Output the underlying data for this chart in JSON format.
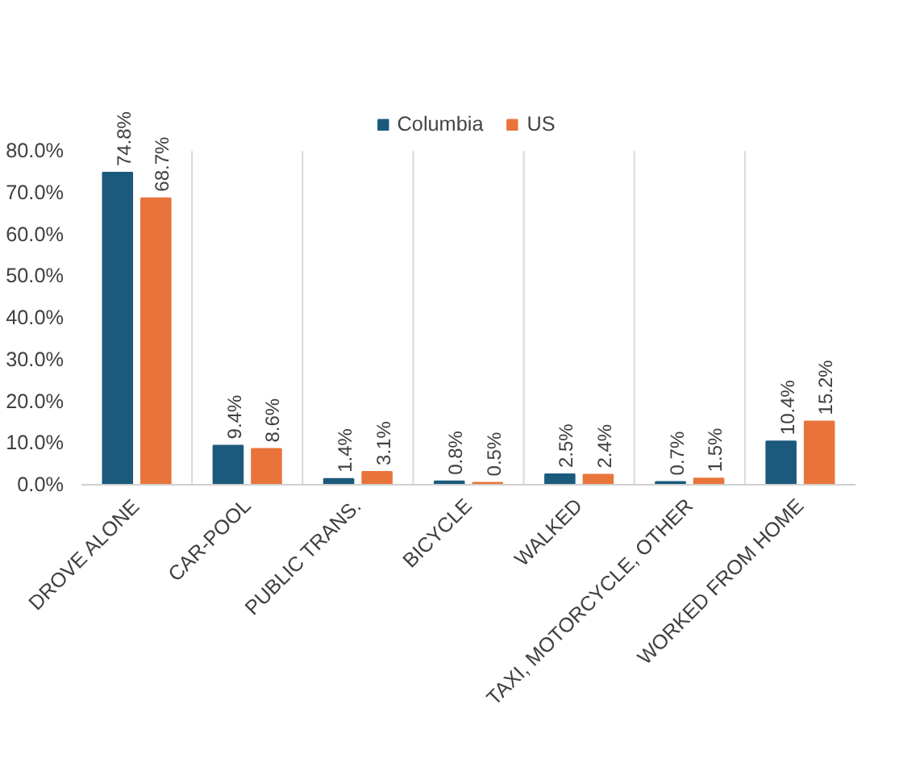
{
  "chart_data": {
    "type": "bar",
    "categories": [
      "DROVE ALONE",
      "CAR-POOL",
      "PUBLIC TRANS.",
      "BICYCLE",
      "WALKED",
      "TAXI, MOTORCYCLE, OTHER",
      "WORKED FROM HOME"
    ],
    "series": [
      {
        "name": "Columbia",
        "color": "#1b5a7c",
        "values": [
          74.8,
          9.4,
          1.4,
          0.8,
          2.5,
          0.7,
          10.4
        ],
        "value_labels": [
          "74.8%",
          "9.4%",
          "1.4%",
          "0.8%",
          "2.5%",
          "0.7%",
          "10.4%"
        ]
      },
      {
        "name": "US",
        "color": "#e8743b",
        "values": [
          68.7,
          8.6,
          3.1,
          0.5,
          2.4,
          1.5,
          15.2
        ],
        "value_labels": [
          "68.7%",
          "8.6%",
          "3.1%",
          "0.5%",
          "2.4%",
          "1.5%",
          "15.2%"
        ]
      }
    ],
    "ylim": [
      0,
      80
    ],
    "yticks": [
      {
        "value": 0,
        "label": "0.0%"
      },
      {
        "value": 10,
        "label": "10.0%"
      },
      {
        "value": 20,
        "label": "20.0%"
      },
      {
        "value": 30,
        "label": "30.0%"
      },
      {
        "value": 40,
        "label": "40.0%"
      },
      {
        "value": 50,
        "label": "50.0%"
      },
      {
        "value": 60,
        "label": "60.0%"
      },
      {
        "value": 70,
        "label": "70.0%"
      },
      {
        "value": 80,
        "label": "80.0%"
      }
    ],
    "grid": "x",
    "legend": "top"
  }
}
